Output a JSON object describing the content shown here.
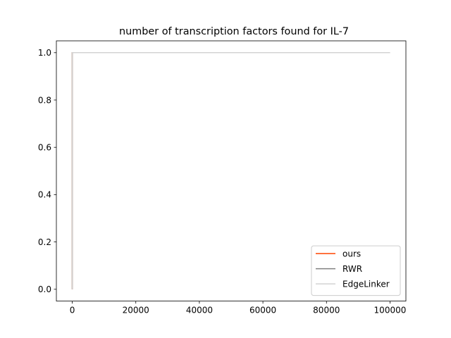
{
  "chart_data": {
    "type": "line",
    "title": "number of transcription factors found for IL-7",
    "xlabel": "",
    "ylabel": "",
    "xlim": [
      -5000,
      105000
    ],
    "ylim": [
      -0.05,
      1.05
    ],
    "xticks": [
      0,
      20000,
      40000,
      60000,
      80000,
      100000
    ],
    "yticks": [
      0.0,
      0.2,
      0.4,
      0.6,
      0.8,
      1.0
    ],
    "xtick_labels": [
      "0",
      "20000",
      "40000",
      "60000",
      "80000",
      "100000"
    ],
    "ytick_labels": [
      "0.0",
      "0.2",
      "0.4",
      "0.6",
      "0.8",
      "1.0"
    ],
    "grid": false,
    "legend_position": "lower-right",
    "series": [
      {
        "name": "ours",
        "color": "#ff4500",
        "x": [
          0,
          1,
          100000
        ],
        "y": [
          0,
          1,
          1
        ]
      },
      {
        "name": "RWR",
        "color": "#808080",
        "x": [
          0,
          1,
          100000
        ],
        "y": [
          0,
          1,
          1
        ]
      },
      {
        "name": "EdgeLinker",
        "color": "#d3d3d3",
        "x": [
          0,
          1,
          100000
        ],
        "y": [
          0,
          1,
          1
        ]
      }
    ]
  }
}
